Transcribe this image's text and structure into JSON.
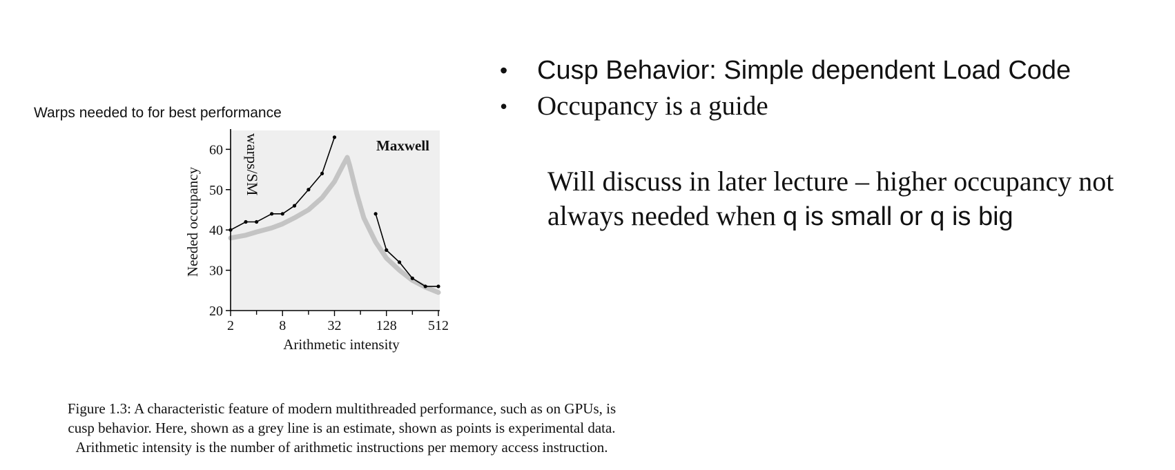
{
  "chart_header": "Warps needed to for best performance",
  "bullets": [
    "Cusp Behavior: Simple dependent Load Code",
    "Occupancy is a guide"
  ],
  "note": {
    "part1": "Will discuss in later lecture – higher occupancy not always needed when ",
    "part2": "q is small or q is big"
  },
  "figure_caption": {
    "line1": "Figure 1.3: A characteristic feature of modern multithreaded performance, such as on GPUs, is",
    "line2": "cusp behavior. Here, shown as a grey line is an estimate, shown as points is experimental data.",
    "line3": "Arithmetic intensity is the number of arithmetic instructions per memory access instruction."
  },
  "chart_data": {
    "type": "line",
    "xlabel": "Arithmetic intensity",
    "ylabel": "Needed occupancy",
    "ylabel_inner": "warps/SM",
    "annotation": "Maxwell",
    "x_scale": "log2",
    "xlim": [
      2,
      512
    ],
    "ylim": [
      20,
      64
    ],
    "x_ticks": [
      2,
      8,
      32,
      128,
      512
    ],
    "y_ticks": [
      20,
      30,
      40,
      50,
      60
    ],
    "grid": false,
    "colors": {
      "background": "#efefef",
      "estimate": "#c4c4c4",
      "measured": "#000000"
    },
    "series": [
      {
        "role": "measured",
        "segments": [
          {
            "x": [
              2,
              3,
              4,
              6,
              8,
              11,
              16,
              23,
              32
            ],
            "y": [
              40,
              42,
              42,
              44,
              44,
              46,
              50,
              54,
              63
            ]
          },
          {
            "x": [
              96,
              128,
              181,
              256,
              362,
              512
            ],
            "y": [
              44,
              35,
              32,
              28,
              26,
              26
            ]
          }
        ]
      },
      {
        "role": "estimate",
        "x": [
          2,
          3,
          4,
          6,
          8,
          11,
          16,
          23,
          32,
          40,
          45,
          48,
          58,
          70,
          96,
          128,
          181,
          256,
          362,
          512
        ],
        "y": [
          38,
          38.7,
          39.5,
          40.5,
          41.5,
          43,
          45,
          48,
          52,
          56,
          58,
          56,
          49,
          43,
          37,
          33,
          30,
          27.5,
          25.8,
          24.5
        ]
      }
    ]
  }
}
